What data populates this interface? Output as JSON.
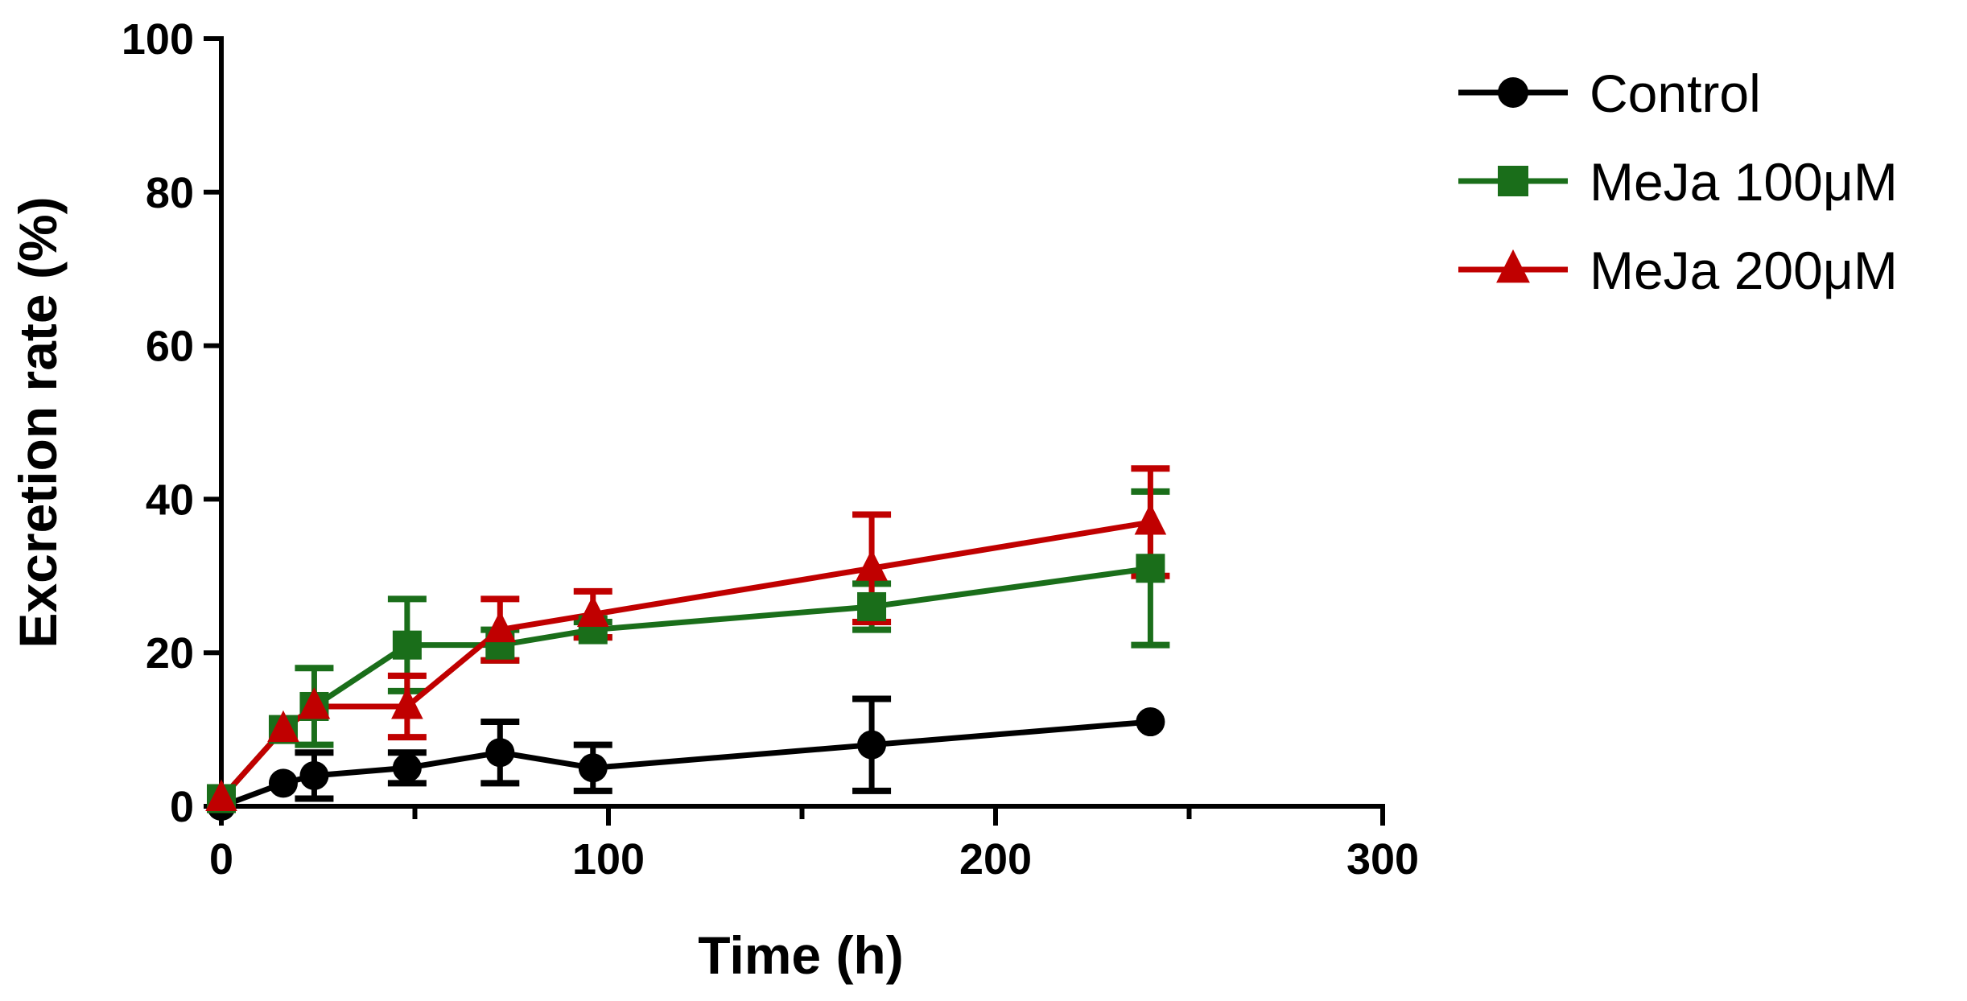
{
  "chart_data": {
    "type": "line",
    "title": "",
    "xlabel": "Time (h)",
    "ylabel": "Excretion rate (%)",
    "xlim": [
      0,
      300
    ],
    "ylim": [
      0,
      100
    ],
    "xticks": [
      0,
      100,
      200,
      300
    ],
    "xticks_minor": [
      50,
      150,
      250
    ],
    "yticks": [
      0,
      20,
      40,
      60,
      80,
      100
    ],
    "grid": false,
    "legend_position": "top-right",
    "series": [
      {
        "name": "Control",
        "color": "#000000",
        "marker": "circle",
        "x": [
          0,
          16,
          24,
          48,
          72,
          96,
          168,
          240
        ],
        "y": [
          0,
          3,
          4,
          5,
          7,
          5,
          8,
          11
        ],
        "err": [
          0,
          0,
          3,
          2,
          4,
          3,
          6,
          0
        ]
      },
      {
        "name": "MeJa 100μM",
        "color": "#1a6e1a",
        "marker": "square",
        "x": [
          0,
          16,
          24,
          48,
          72,
          96,
          168,
          240
        ],
        "y": [
          1,
          10,
          13,
          21,
          21,
          23,
          26,
          31
        ],
        "err": [
          0,
          0,
          5,
          6,
          2,
          1,
          3,
          10
        ]
      },
      {
        "name": "MeJa 200μM",
        "color": "#c00000",
        "marker": "triangle",
        "x": [
          0,
          16,
          24,
          48,
          72,
          96,
          168,
          240
        ],
        "y": [
          1,
          10,
          13,
          13,
          23,
          25,
          31,
          37
        ],
        "err": [
          0,
          0,
          0,
          4,
          4,
          3,
          7,
          7
        ]
      }
    ]
  }
}
